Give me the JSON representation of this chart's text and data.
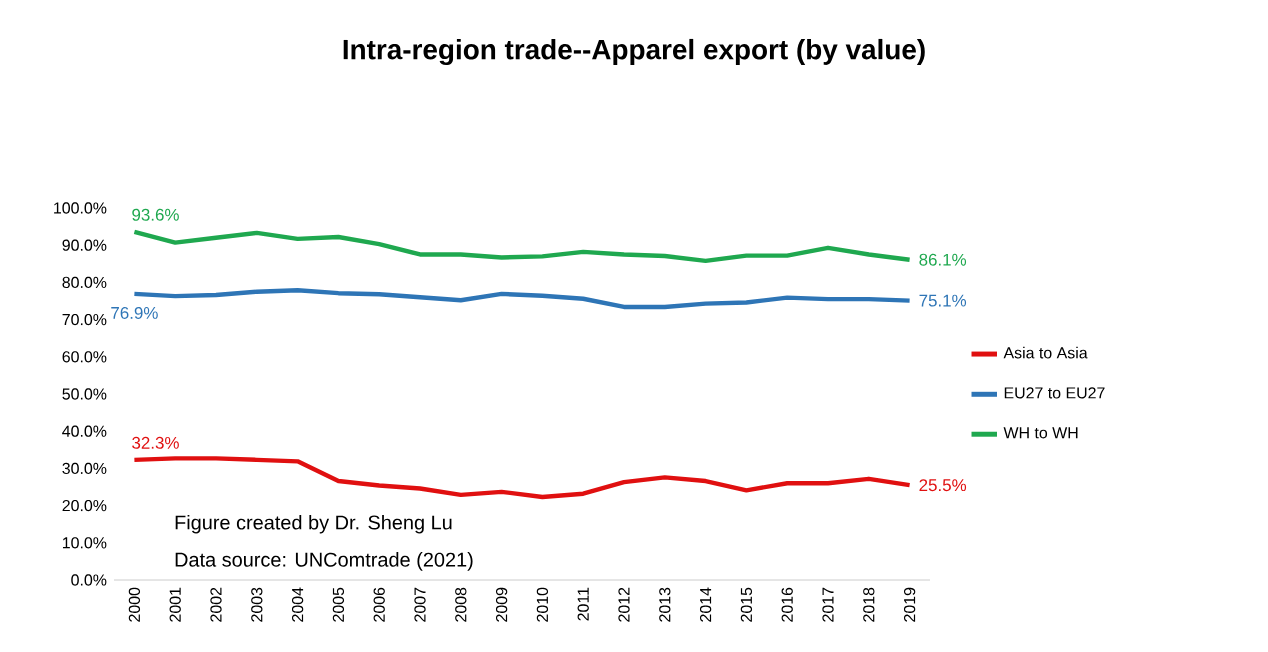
{
  "chart_data": {
    "type": "line",
    "title": "Intra-region trade--Apparel export (by value)",
    "categories": [
      "2000",
      "2001",
      "2002",
      "2003",
      "2004",
      "2005",
      "2006",
      "2007",
      "2008",
      "2009",
      "2010",
      "2011",
      "2012",
      "2013",
      "2014",
      "2015",
      "2016",
      "2017",
      "2018",
      "2019"
    ],
    "series": [
      {
        "name": "Asia to Asia",
        "color": "#e01010",
        "values": [
          32.3,
          32.7,
          32.7,
          32.3,
          31.9,
          26.6,
          25.4,
          24.6,
          22.9,
          23.7,
          22.3,
          23.2,
          26.3,
          27.6,
          26.6,
          24.1,
          26.0,
          26.0,
          27.2,
          25.5
        ],
        "value_labels": [
          "32.3%",
          null,
          null,
          null,
          null,
          null,
          null,
          null,
          null,
          null,
          null,
          null,
          null,
          null,
          null,
          null,
          null,
          null,
          null,
          "25.5%"
        ]
      },
      {
        "name": "EU27 to EU27",
        "color": "#2e75b6",
        "values": [
          76.9,
          76.3,
          76.6,
          77.5,
          77.9,
          77.1,
          76.8,
          76.0,
          75.2,
          76.9,
          76.4,
          75.6,
          73.4,
          73.4,
          74.3,
          74.6,
          75.9,
          75.5,
          75.5,
          75.1
        ],
        "value_labels": [
          "76.9%",
          null,
          null,
          null,
          null,
          null,
          null,
          null,
          null,
          null,
          null,
          null,
          null,
          null,
          null,
          null,
          null,
          null,
          null,
          "75.1%"
        ]
      },
      {
        "name": "WH to WH",
        "color": "#1fa84f",
        "values": [
          93.6,
          90.7,
          92.0,
          93.3,
          91.7,
          92.2,
          90.3,
          87.5,
          87.5,
          86.7,
          87.0,
          88.2,
          87.5,
          87.1,
          85.8,
          87.2,
          87.2,
          89.3,
          87.5,
          86.1
        ],
        "value_labels": [
          "93.6%",
          null,
          null,
          null,
          null,
          null,
          null,
          null,
          null,
          null,
          null,
          null,
          null,
          null,
          null,
          null,
          null,
          null,
          null,
          "86.1%"
        ]
      }
    ],
    "ylim": [
      0,
      100
    ],
    "yticks": [
      {
        "value": 0,
        "label": "0.0%"
      },
      {
        "value": 10,
        "label": "10.0%"
      },
      {
        "value": 20,
        "label": "20.0%"
      },
      {
        "value": 30,
        "label": "30.0%"
      },
      {
        "value": 40,
        "label": "40.0%"
      },
      {
        "value": 50,
        "label": "50.0%"
      },
      {
        "value": 60,
        "label": "60.0%"
      },
      {
        "value": 70,
        "label": "70.0%"
      },
      {
        "value": 80,
        "label": "80.0%"
      },
      {
        "value": 90,
        "label": "90.0%"
      },
      {
        "value": 100,
        "label": "100.0%"
      }
    ],
    "legend": "right",
    "marker": "none",
    "line_style": "solid",
    "annotations": [
      "Figure created by Dr. Sheng Lu",
      "Data source: UNComtrade (2021)"
    ]
  }
}
